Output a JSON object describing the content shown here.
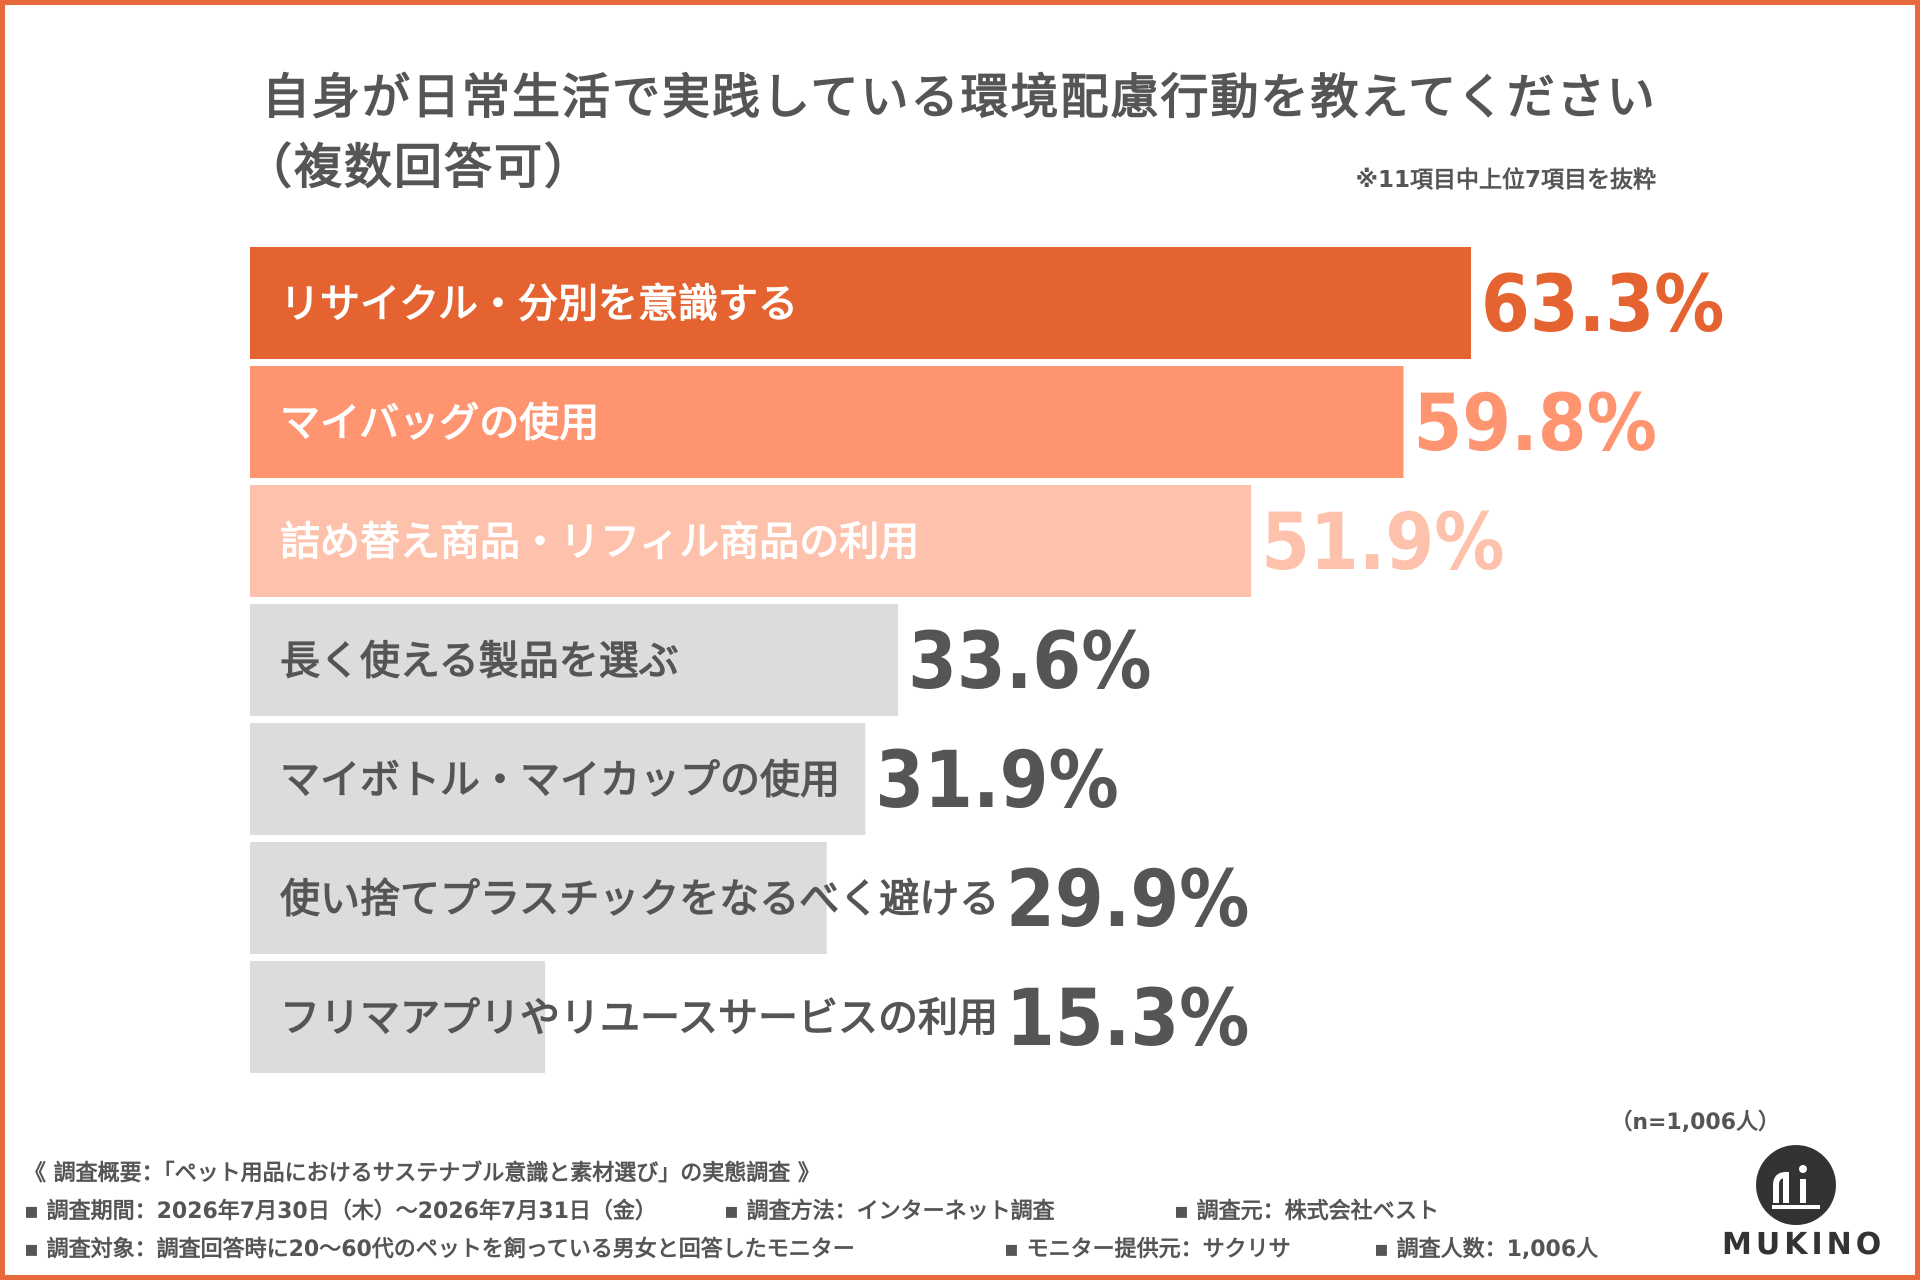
{
  "header": {
    "title_line1": "自身が日常生活で実践している環境配慮行動を教えてください",
    "title_line2": "（複数回答可）",
    "note": "※11項目中上位7項目を抜粋"
  },
  "chart_data": {
    "type": "bar",
    "orientation": "horizontal",
    "title": "自身が日常生活で実践している環境配慮行動を教えてください（複数回答可）",
    "categories": [
      "リサイクル・分別を意識する",
      "マイバッグの使用",
      "詰め替え商品・リフィル商品の利用",
      "長く使える製品を選ぶ",
      "マイボトル・マイカップの使用",
      "使い捨てプラスチックをなるべく避ける",
      "フリマアプリやリユースサービスの利用"
    ],
    "values": [
      63.3,
      59.8,
      51.9,
      33.6,
      31.9,
      29.9,
      15.3
    ],
    "value_labels": [
      "63.3%",
      "59.8%",
      "51.9%",
      "33.6%",
      "31.9%",
      "29.9%",
      "15.3%"
    ],
    "unit": "%",
    "bar_colors": [
      "#e46331",
      "#fe9470",
      "#fec1ac",
      "#dcdcdc",
      "#dcdcdc",
      "#dcdcdc",
      "#dcdcdc"
    ],
    "label_colors": [
      "#ffffff",
      "#ffffff",
      "#ffffff",
      "#555555",
      "#555555",
      "#555555",
      "#555555"
    ],
    "value_colors": [
      "#e46331",
      "#fe9470",
      "#fec1ac",
      "#555555",
      "#555555",
      "#555555",
      "#555555"
    ]
  },
  "sample_size": "（n=1,006人）",
  "survey": {
    "overview": "《 調査概要：「ペット用品におけるサステナブル意識と素材選び」の実態調査 》",
    "period": "調査期間：2026年7月30日（木）～2026年7月31日（金）",
    "method": "調査方法：インターネット調査",
    "source": "調査元：株式会社ベスト",
    "target": "調査対象：調査回答時に20～60代のペットを飼っている男女と回答したモニター",
    "provider": "モニター提供元：サクリサ",
    "count": "調査人数：1,006人"
  },
  "logo": {
    "text": "MUKINO"
  },
  "colors": {
    "accent": "#e86a3a",
    "text": "#555555"
  }
}
